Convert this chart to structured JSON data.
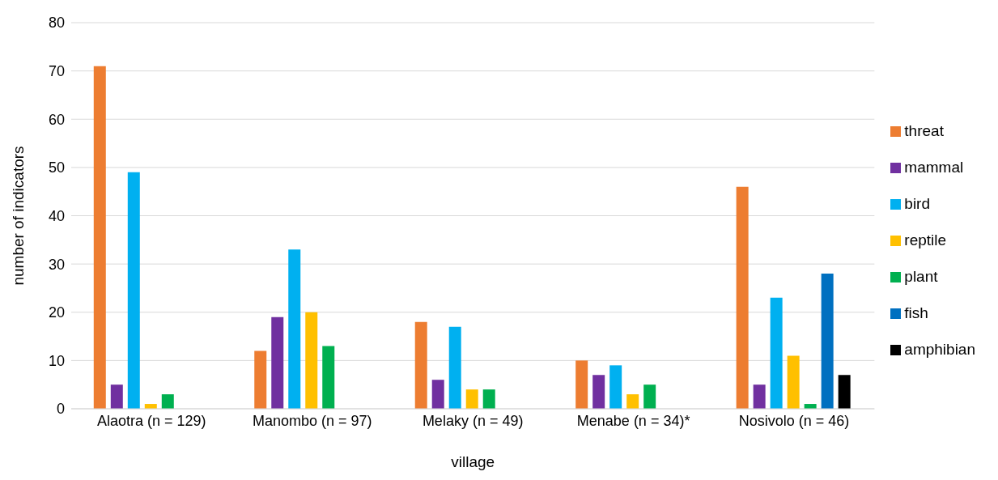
{
  "chart_data": {
    "type": "bar",
    "xlabel": "village",
    "ylabel": "number of indicators",
    "categories": [
      "Alaotra (n = 129)",
      "Manombo (n = 97)",
      "Melaky (n = 49)",
      "Menabe (n = 34)*",
      "Nosivolo (n = 46)"
    ],
    "series": [
      {
        "name": "threat",
        "color": "#ed7d31",
        "values": [
          71,
          12,
          18,
          10,
          46
        ]
      },
      {
        "name": "mammal",
        "color": "#7030a0",
        "values": [
          5,
          19,
          6,
          7,
          5
        ]
      },
      {
        "name": "bird",
        "color": "#00b0f0",
        "values": [
          49,
          33,
          17,
          9,
          23
        ]
      },
      {
        "name": "reptile",
        "color": "#ffc000",
        "values": [
          1,
          20,
          4,
          3,
          11
        ]
      },
      {
        "name": "plant",
        "color": "#00b050",
        "values": [
          3,
          13,
          4,
          5,
          1
        ]
      },
      {
        "name": "fish",
        "color": "#0070c0",
        "values": [
          null,
          null,
          null,
          null,
          28
        ]
      },
      {
        "name": "amphibian",
        "color": "#000000",
        "values": [
          null,
          null,
          null,
          null,
          7
        ]
      }
    ],
    "ylim": [
      0,
      80
    ],
    "yticks": [
      0,
      10,
      20,
      30,
      40,
      50,
      60,
      70,
      80
    ],
    "grid": "y",
    "legend": "right"
  }
}
